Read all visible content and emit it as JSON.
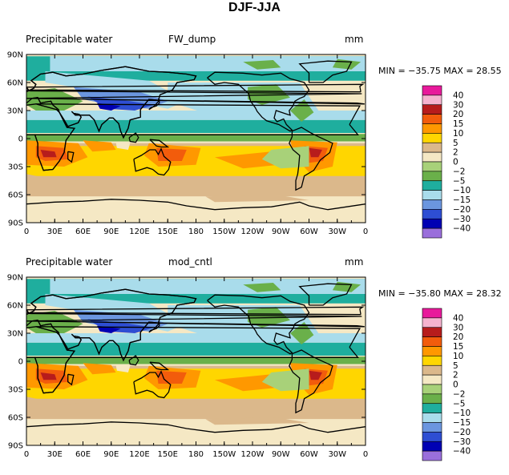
{
  "main_title": "DJF-JJA",
  "panels": [
    {
      "variable": "Precipitable water",
      "case": "FW_dump",
      "units": "mm",
      "stats": {
        "min": "-35.75",
        "max": "28.55",
        "text": "MIN = −35.75 MAX =  28.55"
      }
    },
    {
      "variable": "Precipitable water",
      "case": "mod_cntl",
      "units": "mm",
      "stats": {
        "min": "-35.80",
        "max": "28.32",
        "text": "MIN = −35.80 MAX =  28.32"
      }
    }
  ],
  "chart_data": [
    {
      "type": "heatmap",
      "title": "Precipitable water",
      "subtitle": "FW_dump",
      "units": "mm",
      "xlim": [
        0,
        360
      ],
      "ylim": [
        -90,
        90
      ],
      "x_ticks": [
        "0",
        "30E",
        "60E",
        "90E",
        "120E",
        "150E",
        "180",
        "150W",
        "120W",
        "90W",
        "60W",
        "30W",
        "0"
      ],
      "y_ticks": [
        "90N",
        "60N",
        "30N",
        "0",
        "30S",
        "60S",
        "90S"
      ],
      "contour_levels": [
        -40,
        -30,
        -20,
        -15,
        -10,
        -5,
        -2,
        0,
        2,
        5,
        10,
        15,
        20,
        30,
        40
      ],
      "colorbar_labels": [
        "40",
        "30",
        "20",
        "15",
        "10",
        "5",
        "2",
        "0",
        "−2",
        "−5",
        "−10",
        "−15",
        "−20",
        "−30",
        "−40"
      ],
      "colorbar_colors": [
        "#e8199b",
        "#f5b3cf",
        "#b71c1c",
        "#f25c0c",
        "#ff9800",
        "#ffd600",
        "#dbb88b",
        "#f5e8c4",
        "#a8d179",
        "#6ab04a",
        "#1fae9e",
        "#a9dceb",
        "#6b96df",
        "#2e4ed3",
        "#0000b3",
        "#9a6fdb"
      ],
      "min": -35.75,
      "max": 28.55
    },
    {
      "type": "heatmap",
      "title": "Precipitable water",
      "subtitle": "mod_cntl",
      "units": "mm",
      "xlim": [
        0,
        360
      ],
      "ylim": [
        -90,
        90
      ],
      "x_ticks": [
        "0",
        "30E",
        "60E",
        "90E",
        "120E",
        "150E",
        "180",
        "150W",
        "120W",
        "90W",
        "60W",
        "30W",
        "0"
      ],
      "y_ticks": [
        "90N",
        "60N",
        "30N",
        "0",
        "30S",
        "60S",
        "90S"
      ],
      "contour_levels": [
        -40,
        -30,
        -20,
        -15,
        -10,
        -5,
        -2,
        0,
        2,
        5,
        10,
        15,
        20,
        30,
        40
      ],
      "colorbar_labels": [
        "40",
        "30",
        "20",
        "15",
        "10",
        "5",
        "2",
        "0",
        "−2",
        "−5",
        "−10",
        "−15",
        "−20",
        "−30",
        "−40"
      ],
      "colorbar_colors": [
        "#e8199b",
        "#f5b3cf",
        "#b71c1c",
        "#f25c0c",
        "#ff9800",
        "#ffd600",
        "#dbb88b",
        "#f5e8c4",
        "#a8d179",
        "#6ab04a",
        "#1fae9e",
        "#a9dceb",
        "#6b96df",
        "#2e4ed3",
        "#0000b3",
        "#9a6fdb"
      ],
      "min": -35.8,
      "max": 28.32
    }
  ]
}
